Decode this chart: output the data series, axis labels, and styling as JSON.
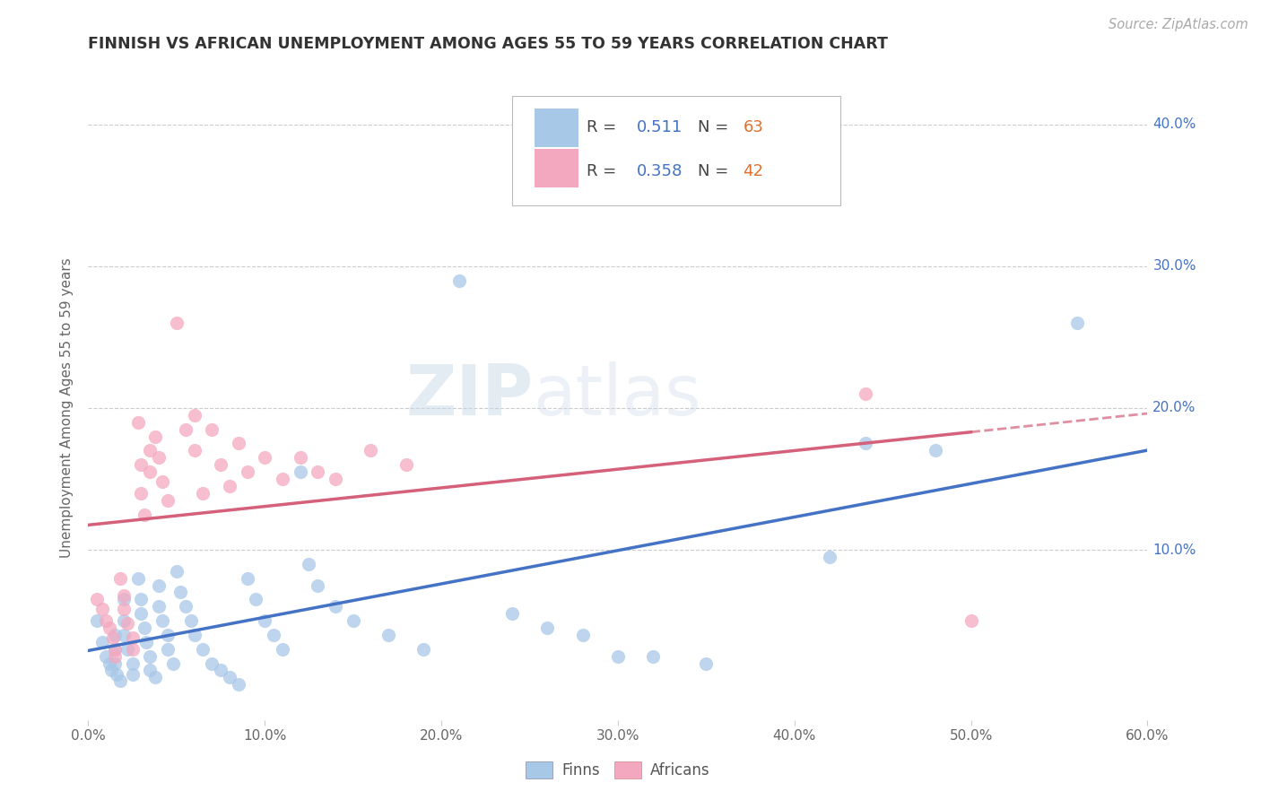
{
  "title": "FINNISH VS AFRICAN UNEMPLOYMENT AMONG AGES 55 TO 59 YEARS CORRELATION CHART",
  "source": "Source: ZipAtlas.com",
  "ylabel": "Unemployment Among Ages 55 to 59 years",
  "xlim": [
    0.0,
    0.6
  ],
  "ylim": [
    -0.02,
    0.42
  ],
  "xticks": [
    0.0,
    0.1,
    0.2,
    0.3,
    0.4,
    0.5,
    0.6
  ],
  "xtick_labels": [
    "0.0%",
    "10.0%",
    "20.0%",
    "30.0%",
    "40.0%",
    "50.0%",
    "60.0%"
  ],
  "yticks": [
    0.1,
    0.2,
    0.3,
    0.4
  ],
  "ytick_labels": [
    "10.0%",
    "20.0%",
    "30.0%",
    "40.0%"
  ],
  "legend_finns_r": "0.511",
  "legend_finns_n": "63",
  "legend_africans_r": "0.358",
  "legend_africans_n": "42",
  "finns_color": "#a8c8e8",
  "africans_color": "#f4a8c0",
  "finns_line_color": "#4472c4",
  "africans_line_color": "#d4607a",
  "watermark_zip": "ZIP",
  "watermark_atlas": "atlas",
  "finns_scatter": [
    [
      0.005,
      0.05
    ],
    [
      0.008,
      0.035
    ],
    [
      0.01,
      0.025
    ],
    [
      0.012,
      0.02
    ],
    [
      0.013,
      0.015
    ],
    [
      0.015,
      0.04
    ],
    [
      0.015,
      0.03
    ],
    [
      0.015,
      0.02
    ],
    [
      0.016,
      0.012
    ],
    [
      0.018,
      0.008
    ],
    [
      0.02,
      0.065
    ],
    [
      0.02,
      0.05
    ],
    [
      0.02,
      0.04
    ],
    [
      0.022,
      0.03
    ],
    [
      0.025,
      0.02
    ],
    [
      0.025,
      0.012
    ],
    [
      0.028,
      0.08
    ],
    [
      0.03,
      0.065
    ],
    [
      0.03,
      0.055
    ],
    [
      0.032,
      0.045
    ],
    [
      0.033,
      0.035
    ],
    [
      0.035,
      0.025
    ],
    [
      0.035,
      0.015
    ],
    [
      0.038,
      0.01
    ],
    [
      0.04,
      0.075
    ],
    [
      0.04,
      0.06
    ],
    [
      0.042,
      0.05
    ],
    [
      0.045,
      0.04
    ],
    [
      0.045,
      0.03
    ],
    [
      0.048,
      0.02
    ],
    [
      0.05,
      0.085
    ],
    [
      0.052,
      0.07
    ],
    [
      0.055,
      0.06
    ],
    [
      0.058,
      0.05
    ],
    [
      0.06,
      0.04
    ],
    [
      0.065,
      0.03
    ],
    [
      0.07,
      0.02
    ],
    [
      0.075,
      0.015
    ],
    [
      0.08,
      0.01
    ],
    [
      0.085,
      0.005
    ],
    [
      0.09,
      0.08
    ],
    [
      0.095,
      0.065
    ],
    [
      0.1,
      0.05
    ],
    [
      0.105,
      0.04
    ],
    [
      0.11,
      0.03
    ],
    [
      0.12,
      0.155
    ],
    [
      0.125,
      0.09
    ],
    [
      0.13,
      0.075
    ],
    [
      0.14,
      0.06
    ],
    [
      0.15,
      0.05
    ],
    [
      0.17,
      0.04
    ],
    [
      0.19,
      0.03
    ],
    [
      0.21,
      0.29
    ],
    [
      0.24,
      0.055
    ],
    [
      0.26,
      0.045
    ],
    [
      0.28,
      0.04
    ],
    [
      0.3,
      0.025
    ],
    [
      0.32,
      0.025
    ],
    [
      0.35,
      0.02
    ],
    [
      0.42,
      0.095
    ],
    [
      0.44,
      0.175
    ],
    [
      0.48,
      0.17
    ],
    [
      0.56,
      0.26
    ]
  ],
  "africans_scatter": [
    [
      0.005,
      0.065
    ],
    [
      0.008,
      0.058
    ],
    [
      0.01,
      0.05
    ],
    [
      0.012,
      0.045
    ],
    [
      0.014,
      0.038
    ],
    [
      0.015,
      0.03
    ],
    [
      0.015,
      0.025
    ],
    [
      0.018,
      0.08
    ],
    [
      0.02,
      0.068
    ],
    [
      0.02,
      0.058
    ],
    [
      0.022,
      0.048
    ],
    [
      0.025,
      0.038
    ],
    [
      0.025,
      0.03
    ],
    [
      0.028,
      0.19
    ],
    [
      0.03,
      0.16
    ],
    [
      0.03,
      0.14
    ],
    [
      0.032,
      0.125
    ],
    [
      0.035,
      0.17
    ],
    [
      0.035,
      0.155
    ],
    [
      0.038,
      0.18
    ],
    [
      0.04,
      0.165
    ],
    [
      0.042,
      0.148
    ],
    [
      0.045,
      0.135
    ],
    [
      0.05,
      0.26
    ],
    [
      0.055,
      0.185
    ],
    [
      0.06,
      0.195
    ],
    [
      0.06,
      0.17
    ],
    [
      0.065,
      0.14
    ],
    [
      0.07,
      0.185
    ],
    [
      0.075,
      0.16
    ],
    [
      0.08,
      0.145
    ],
    [
      0.085,
      0.175
    ],
    [
      0.09,
      0.155
    ],
    [
      0.1,
      0.165
    ],
    [
      0.11,
      0.15
    ],
    [
      0.12,
      0.165
    ],
    [
      0.13,
      0.155
    ],
    [
      0.14,
      0.15
    ],
    [
      0.16,
      0.17
    ],
    [
      0.18,
      0.16
    ],
    [
      0.44,
      0.21
    ],
    [
      0.5,
      0.05
    ]
  ]
}
